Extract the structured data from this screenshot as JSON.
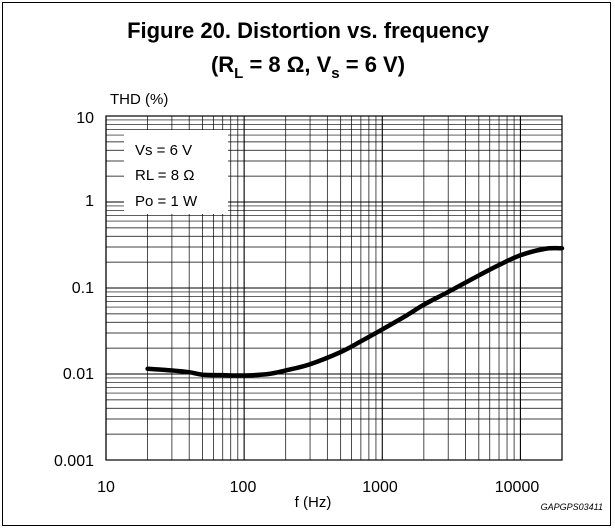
{
  "chart_data": {
    "type": "line",
    "title_line1": "Figure 20. Distortion vs. frequency",
    "title_line2": {
      "open": "(R",
      "sub1": "L",
      "mid": " = 8 Ω, V",
      "sub2": "s",
      "close": " = 6 V)"
    },
    "ylabel": "THD (%)",
    "xlabel": "f (Hz)",
    "x_scale": "log",
    "y_scale": "log",
    "xlim": [
      10,
      20000
    ],
    "ylim": [
      0.001,
      10
    ],
    "x_tick_labels": [
      "10",
      "100",
      "1000",
      "10000"
    ],
    "y_tick_labels": [
      "10",
      "1",
      "0.1",
      "0.01",
      "0.001"
    ],
    "grid": true,
    "legend_box": [
      "Vs = 6 V",
      "RL = 8 Ω",
      "Po = 1 W"
    ],
    "legend_placement": "top-left",
    "figure_code": "GAPGPS03411",
    "series": [
      {
        "color": "#000000",
        "x": [
          20,
          30,
          40,
          50,
          70,
          100,
          150,
          200,
          300,
          500,
          700,
          1000,
          1500,
          2000,
          3000,
          5000,
          7000,
          10000,
          15000,
          20000
        ],
        "y": [
          0.0115,
          0.011,
          0.0105,
          0.0098,
          0.0097,
          0.0096,
          0.01,
          0.011,
          0.013,
          0.018,
          0.024,
          0.033,
          0.048,
          0.064,
          0.09,
          0.14,
          0.185,
          0.24,
          0.285,
          0.29
        ]
      }
    ]
  }
}
